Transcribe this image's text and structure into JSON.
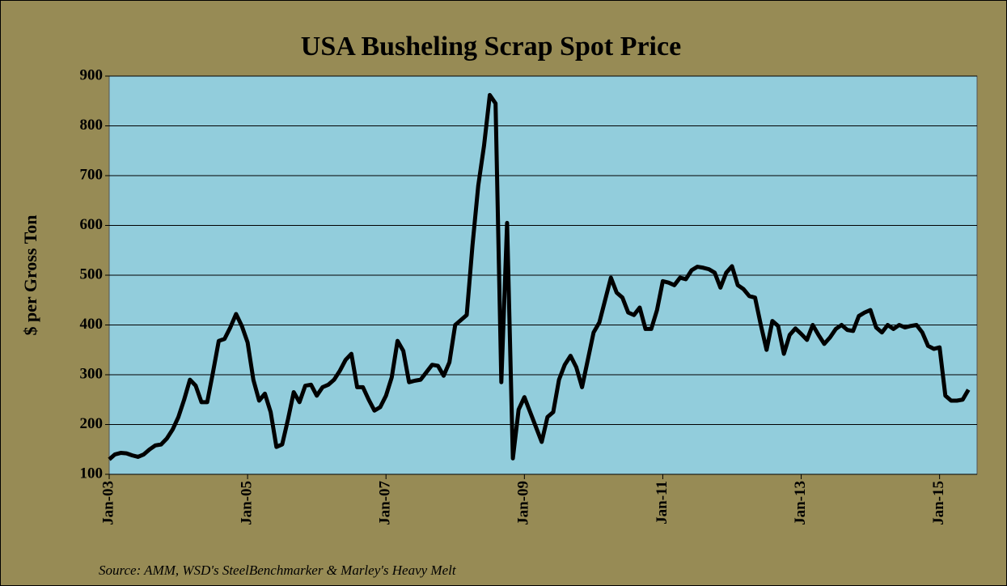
{
  "chart_data": {
    "type": "line",
    "title": "USA Busheling Scrap Spot Price",
    "y_label": "$ per Gross Ton",
    "source": "Source:  AMM, WSD's SteelBenchmarker & Marley's Heavy Melt",
    "categories": [
      "Jan-03",
      null,
      null,
      null,
      null,
      null,
      null,
      null,
      null,
      null,
      null,
      null,
      null,
      null,
      null,
      null,
      null,
      null,
      null,
      null,
      null,
      null,
      null,
      null,
      "Jan-05",
      null,
      null,
      null,
      null,
      null,
      null,
      null,
      null,
      null,
      null,
      null,
      null,
      null,
      null,
      null,
      null,
      null,
      null,
      null,
      null,
      null,
      null,
      null,
      "Jan-07",
      null,
      null,
      null,
      null,
      null,
      null,
      null,
      null,
      null,
      null,
      null,
      null,
      null,
      null,
      null,
      null,
      null,
      null,
      null,
      null,
      null,
      null,
      null,
      "Jan-09",
      null,
      null,
      null,
      null,
      null,
      null,
      null,
      null,
      null,
      null,
      null,
      null,
      null,
      null,
      null,
      null,
      null,
      null,
      null,
      null,
      null,
      null,
      null,
      "Jan-11",
      null,
      null,
      null,
      null,
      null,
      null,
      null,
      null,
      null,
      null,
      null,
      null,
      null,
      null,
      null,
      null,
      null,
      null,
      null,
      null,
      null,
      null,
      null,
      "Jan-13",
      null,
      null,
      null,
      null,
      null,
      null,
      null,
      null,
      null,
      null,
      null,
      null,
      null,
      null,
      null,
      null,
      null,
      null,
      null,
      null,
      null,
      null,
      null,
      "Jan-15",
      null,
      null,
      null,
      null,
      null
    ],
    "series": [
      {
        "name": "Busheling",
        "color": "#000000",
        "values": [
          130,
          140,
          143,
          142,
          138,
          135,
          140,
          150,
          158,
          160,
          172,
          190,
          215,
          250,
          290,
          278,
          245,
          245,
          305,
          368,
          372,
          395,
          422,
          398,
          365,
          290,
          248,
          262,
          225,
          155,
          160,
          210,
          265,
          245,
          278,
          280,
          258,
          275,
          280,
          290,
          308,
          330,
          342,
          275,
          275,
          250,
          228,
          235,
          258,
          295,
          368,
          348,
          285,
          288,
          290,
          305,
          320,
          318,
          298,
          325,
          400,
          410,
          420,
          560,
          680,
          760,
          862,
          845,
          285,
          605,
          132,
          230,
          255,
          225,
          195,
          165,
          215,
          225,
          290,
          320,
          338,
          315,
          275,
          330,
          385,
          405,
          450,
          495,
          465,
          455,
          425,
          420,
          435,
          392,
          392,
          430,
          488,
          485,
          480,
          495,
          492,
          510,
          517,
          515,
          512,
          505,
          475,
          505,
          518,
          480,
          472,
          458,
          455,
          400,
          350,
          408,
          398,
          342,
          380,
          393,
          382,
          370,
          400,
          380,
          362,
          375,
          392,
          400,
          390,
          388,
          418,
          425,
          430,
          395,
          385,
          400,
          392,
          400,
          395,
          398,
          400,
          385,
          358,
          352,
          355,
          258,
          248,
          248,
          250,
          270
        ]
      }
    ],
    "ylim": [
      100,
      900
    ],
    "yticks": [
      100,
      200,
      300,
      400,
      500,
      600,
      700,
      800,
      900
    ],
    "grid": true
  }
}
